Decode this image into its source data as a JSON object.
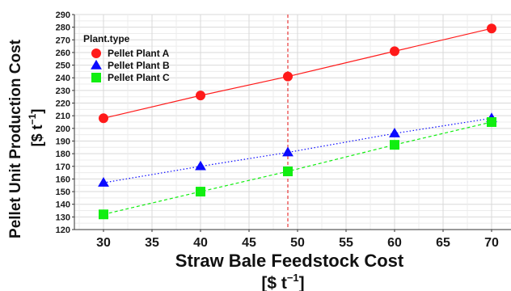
{
  "chart_data": {
    "type": "line",
    "xlabel": "Straw Bale Feedstock Cost",
    "xlabel_unit": "[$  t",
    "xlabel_unit_exp": "−1",
    "xlabel_unit_close": "]",
    "ylabel": "Pellet Unit Production Cost",
    "ylabel_unit": "[$ t",
    "ylabel_unit_exp": "−1",
    "ylabel_unit_close": "]",
    "xlim": [
      27,
      72
    ],
    "ylim": [
      120,
      290
    ],
    "x_ticks": [
      30,
      35,
      40,
      45,
      50,
      55,
      60,
      65,
      70
    ],
    "y_ticks": [
      120,
      130,
      140,
      150,
      160,
      170,
      180,
      190,
      200,
      210,
      220,
      230,
      240,
      250,
      260,
      270,
      280,
      290
    ],
    "grid": true,
    "reference_line": {
      "x": 49,
      "color": "#e8393a",
      "style": "dashed"
    },
    "legend": {
      "title": "Plant.type",
      "position": "top-left"
    },
    "series": [
      {
        "name": "Pellet Plant A",
        "color": "#ff1a1a",
        "marker": "circle",
        "line": "solid",
        "x": [
          30,
          40,
          49,
          60,
          70
        ],
        "y": [
          208,
          226,
          241,
          261,
          279
        ]
      },
      {
        "name": "Pellet Plant B",
        "color": "#0a0aff",
        "marker": "triangle",
        "line": "dotted",
        "x": [
          30,
          40,
          49,
          60,
          70
        ],
        "y": [
          157,
          170,
          181,
          196,
          208
        ]
      },
      {
        "name": "Pellet Plant C",
        "color": "#11ee11",
        "marker": "square",
        "line": "dashed",
        "x": [
          30,
          40,
          49,
          60,
          70
        ],
        "y": [
          132,
          150,
          166,
          187,
          205
        ]
      }
    ]
  }
}
